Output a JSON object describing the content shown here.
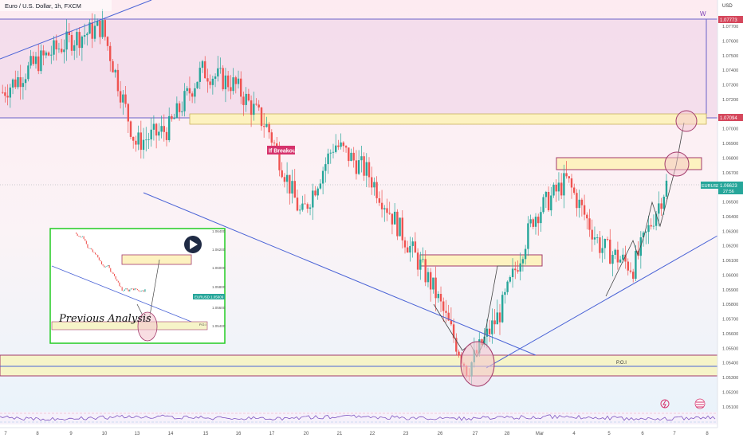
{
  "header": {
    "symbol_title": "Euro / U.S. Dollar, 1h, FXCM"
  },
  "price_axis": {
    "currency": "USD",
    "ticks": [
      "1.07700",
      "1.07600",
      "1.07500",
      "1.07400",
      "1.07300",
      "1.07200",
      "1.07000",
      "1.06900",
      "1.06800",
      "1.06700",
      "1.06500",
      "1.06400",
      "1.06300",
      "1.06200",
      "1.06100",
      "1.06000",
      "1.05900",
      "1.05800",
      "1.05700",
      "1.05600",
      "1.05500",
      "1.05400",
      "1.05300",
      "1.05200",
      "1.05100"
    ],
    "badges": {
      "upper_line": {
        "value": "1.07773",
        "color": "#d5475c"
      },
      "mid_line": {
        "value": "1.07094",
        "color": "#d5475c"
      },
      "current": {
        "value": "1.06623",
        "symbol": "EURUSD",
        "timer": "27:56",
        "color": "#26a69a"
      }
    }
  },
  "time_axis": {
    "labels": [
      "7",
      "8",
      "9",
      "10",
      "13",
      "14",
      "15",
      "16",
      "17",
      "20",
      "21",
      "22",
      "23",
      "26",
      "27",
      "28",
      "Mar",
      "4",
      "5",
      "6",
      "7",
      "8"
    ]
  },
  "annotations": {
    "breakout_label": "If Breakout",
    "poi_label": "P.O.I",
    "wave_label": "W",
    "inset_title": "Previous Analysis",
    "inset_symbol": "EURUSD",
    "inset_price": "1.05609",
    "inset_poi": "P.O.I",
    "inset_ticks": [
      "1.06400",
      "1.06200",
      "1.06000",
      "1.05800",
      "1.05600",
      "1.05400"
    ]
  },
  "colors": {
    "bull": "#26a69a",
    "bear": "#ef5350",
    "trendline": "#4a63d6",
    "zone_fill": "#fdf3c2",
    "zone_border": "#a33a6b",
    "resistance_band": "#f2dbe8",
    "inset_border": "#22cc22"
  },
  "chart_data": {
    "type": "candlestick",
    "title": "Euro / U.S. Dollar, 1h, FXCM",
    "ylabel": "USD",
    "ylim": [
      1.0505,
      1.0788
    ],
    "x_categories": [
      "7",
      "8",
      "9",
      "10",
      "13",
      "14",
      "15",
      "16",
      "17",
      "20",
      "21",
      "22",
      "23",
      "26",
      "27",
      "28",
      "Mar",
      "4",
      "5",
      "6",
      "7",
      "8"
    ],
    "close_series": [
      {
        "day": "7",
        "close": 1.0725
      },
      {
        "day": "8",
        "close": 1.0745
      },
      {
        "day": "9",
        "close": 1.076
      },
      {
        "day": "10",
        "close": 1.077
      },
      {
        "day": "13",
        "close": 1.069
      },
      {
        "day": "14",
        "close": 1.07
      },
      {
        "day": "15",
        "close": 1.074
      },
      {
        "day": "16",
        "close": 1.073
      },
      {
        "day": "17",
        "close": 1.07
      },
      {
        "day": "20",
        "close": 1.064
      },
      {
        "day": "21",
        "close": 1.069
      },
      {
        "day": "22",
        "close": 1.067
      },
      {
        "day": "23",
        "close": 1.063
      },
      {
        "day": "26",
        "close": 1.059
      },
      {
        "day": "27",
        "close": 1.0535
      },
      {
        "day": "28",
        "close": 1.0575
      },
      {
        "day": "Mar",
        "close": 1.064
      },
      {
        "day": "4",
        "close": 1.0665
      },
      {
        "day": "5",
        "close": 1.062
      },
      {
        "day": "6",
        "close": 1.0605
      },
      {
        "day": "7",
        "close": 1.0662
      }
    ],
    "horizontal_levels": [
      1.07773,
      1.07094
    ],
    "zones": [
      {
        "name": "resistance-box",
        "from": 1.0705,
        "to": 1.0712
      },
      {
        "name": "target-box",
        "from": 1.067,
        "to": 1.0676
      },
      {
        "name": "mid-box",
        "from": 1.0608,
        "to": 1.0613
      },
      {
        "name": "poi-box",
        "from": 1.0527,
        "to": 1.0545
      }
    ],
    "grid": false,
    "legend": "none"
  }
}
